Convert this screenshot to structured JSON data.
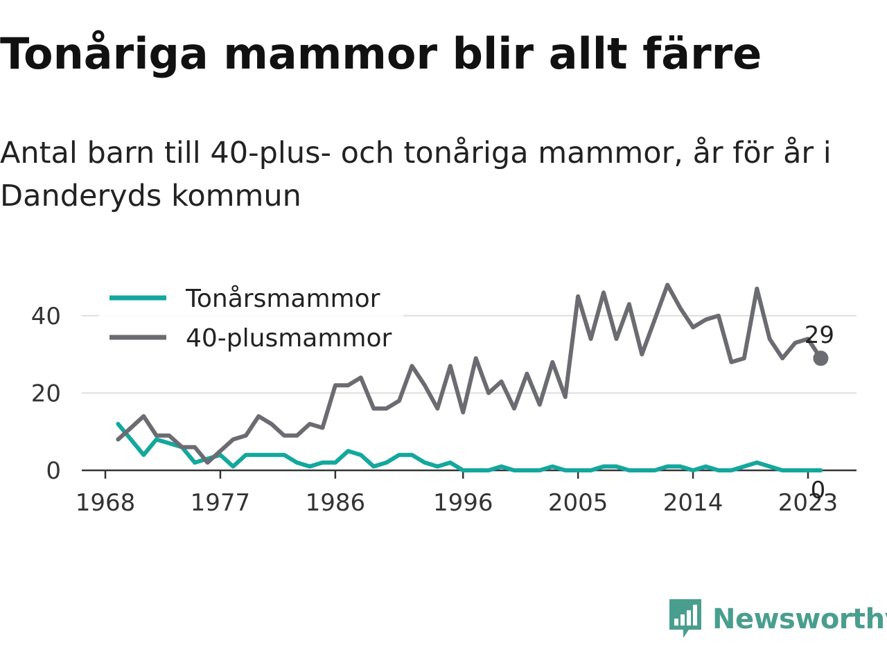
{
  "header": {
    "title": "Tonåriga mammor blir allt färre",
    "subtitle": "Antal barn till 40-plus- och tonåriga mammor, år för år i Danderyds kommun"
  },
  "brand": {
    "name": "Newsworthy",
    "icon": "newsworthy-logo-icon",
    "color": "#4a9e8e"
  },
  "chart_data": {
    "type": "line",
    "title": "Tonåriga mammor blir allt färre",
    "subtitle": "Antal barn till 40-plus- och tonåriga mammor, år för år i Danderyds kommun",
    "xlabel": "",
    "ylabel": "",
    "xlim": [
      1968,
      2025
    ],
    "ylim": [
      0,
      50
    ],
    "x_ticks": [
      1968,
      1977,
      1986,
      1996,
      2005,
      2014,
      2023
    ],
    "y_ticks": [
      0,
      20,
      40
    ],
    "grid": true,
    "legend_position": "top-left",
    "x": [
      1969,
      1970,
      1971,
      1972,
      1973,
      1974,
      1975,
      1976,
      1977,
      1978,
      1979,
      1980,
      1981,
      1982,
      1983,
      1984,
      1985,
      1986,
      1987,
      1988,
      1989,
      1990,
      1991,
      1992,
      1993,
      1994,
      1995,
      1996,
      1997,
      1998,
      1999,
      2000,
      2001,
      2002,
      2003,
      2004,
      2005,
      2006,
      2007,
      2008,
      2009,
      2010,
      2011,
      2012,
      2013,
      2014,
      2015,
      2016,
      2017,
      2018,
      2019,
      2020,
      2021,
      2022,
      2023,
      2024
    ],
    "series": [
      {
        "name": "Tonårsmammor",
        "color": "#14a79d",
        "values": [
          12,
          8,
          4,
          8,
          7,
          6,
          2,
          3,
          4,
          1,
          4,
          4,
          4,
          4,
          2,
          1,
          2,
          2,
          5,
          4,
          1,
          2,
          4,
          4,
          2,
          1,
          2,
          0,
          0,
          0,
          1,
          0,
          0,
          0,
          1,
          0,
          0,
          0,
          1,
          1,
          0,
          0,
          0,
          1,
          1,
          0,
          1,
          0,
          0,
          1,
          2,
          1,
          0,
          0,
          0,
          0
        ],
        "end_label": "0"
      },
      {
        "name": "40-plusmammor",
        "color": "#6b6b72",
        "values": [
          8,
          11,
          14,
          9,
          9,
          6,
          6,
          2,
          5,
          8,
          9,
          14,
          12,
          9,
          9,
          12,
          11,
          22,
          22,
          24,
          16,
          16,
          18,
          27,
          22,
          16,
          27,
          15,
          29,
          20,
          23,
          16,
          25,
          17,
          28,
          19,
          45,
          34,
          46,
          34,
          43,
          30,
          39,
          48,
          42,
          37,
          39,
          40,
          28,
          29,
          47,
          34,
          29,
          33,
          34,
          29
        ],
        "end_label": "29"
      }
    ]
  }
}
